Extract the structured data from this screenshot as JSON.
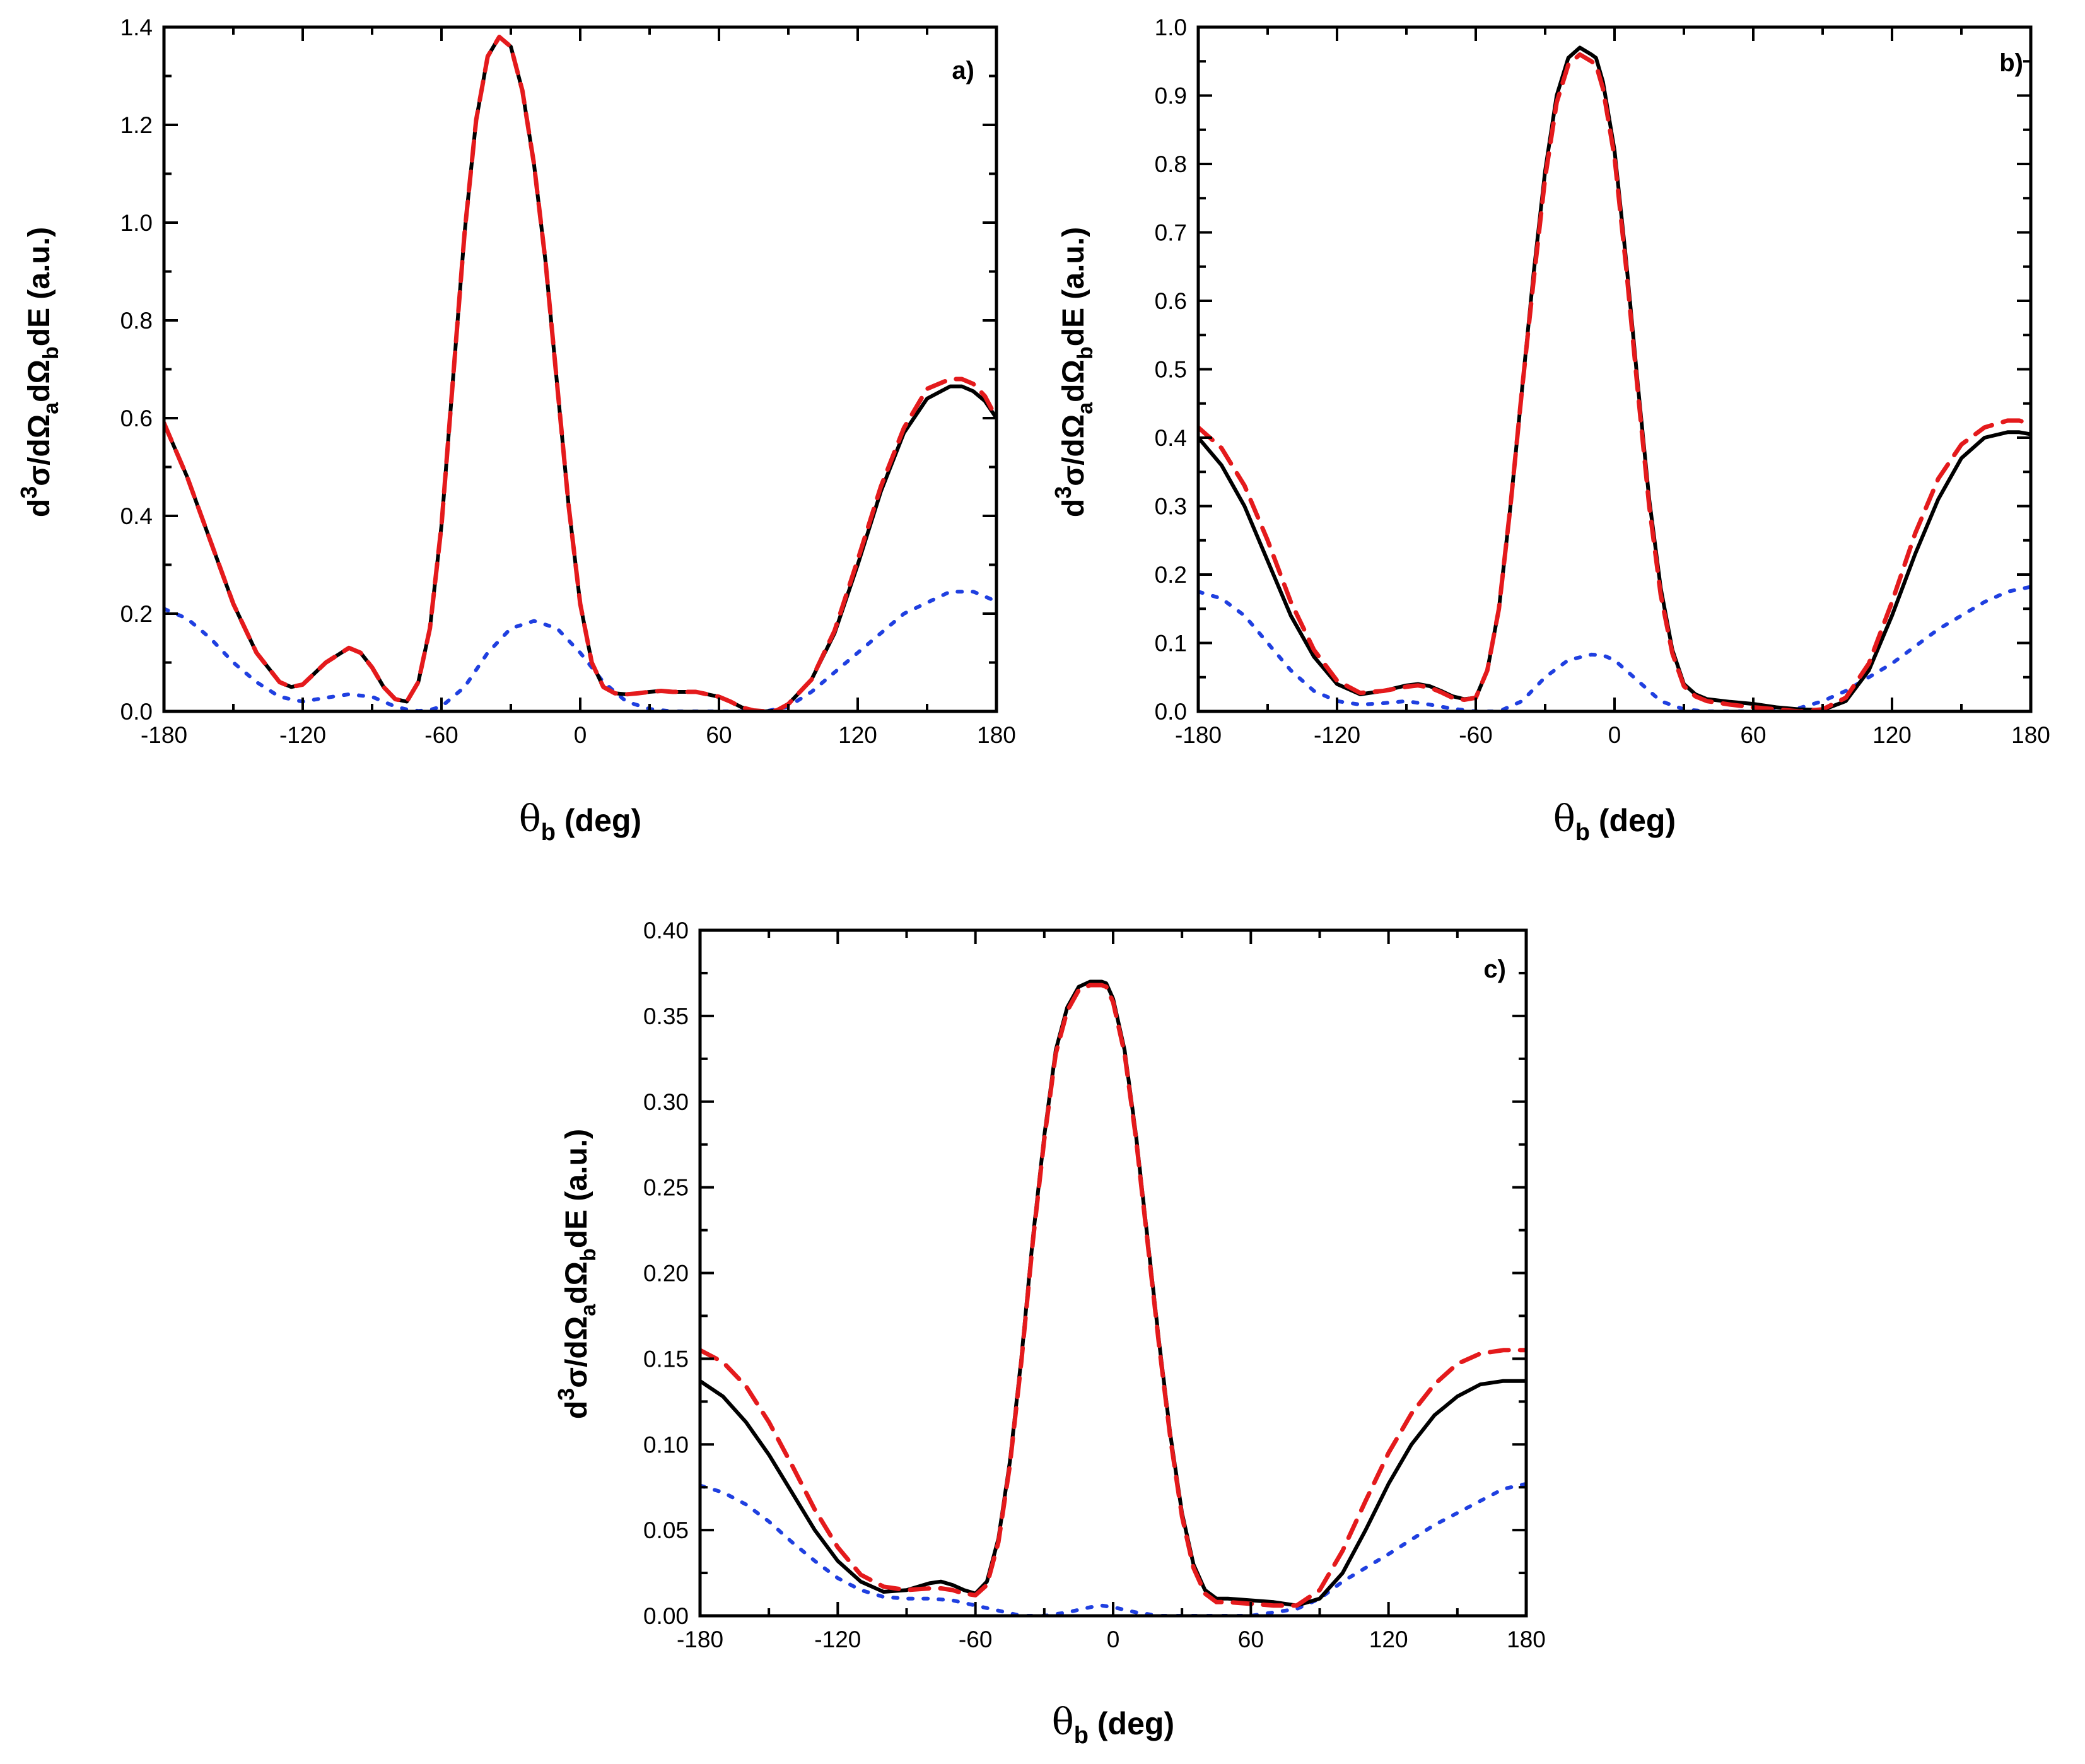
{
  "colors": {
    "full": "#000000",
    "approx": "#e41a1c",
    "component": "#1f3fe0"
  },
  "chart_data": [
    {
      "type": "line",
      "panel_label": "a)",
      "xlabel": {
        "symbol": "θ",
        "sub": "b",
        "rest": " (deg)"
      },
      "ylabel": {
        "d": "d",
        "exp": "3",
        "sig": "σ/dΩ",
        "suba": "a",
        "mid": "dΩ",
        "subb": "b",
        "rest": "dE (a.u.)"
      },
      "xlim": [
        -180,
        180
      ],
      "ylim": [
        0,
        1.4
      ],
      "xticks": [
        -180,
        -120,
        -60,
        0,
        60,
        120,
        180
      ],
      "xtick_labels": [
        "-180",
        "-120",
        "-60",
        "0",
        "60",
        "120",
        "180"
      ],
      "yticks": [
        0,
        0.2,
        0.4,
        0.6,
        0.8,
        1.0,
        1.2,
        1.4
      ],
      "ytick_labels": [
        "0.0",
        "0.2",
        "0.4",
        "0.6",
        "0.8",
        "1.0",
        "1.2",
        "1.4"
      ],
      "series": [
        {
          "name": "solid",
          "style": "solid",
          "color": "#000000",
          "x": [
            -180,
            -170,
            -160,
            -150,
            -140,
            -130,
            -125,
            -120,
            -110,
            -100,
            -95,
            -90,
            -85,
            -80,
            -75,
            -70,
            -65,
            -60,
            -55,
            -50,
            -45,
            -40,
            -35,
            -30,
            -25,
            -22,
            -20,
            -15,
            -10,
            -5,
            0,
            5,
            10,
            15,
            20,
            25,
            30,
            35,
            40,
            50,
            60,
            65,
            70,
            75,
            80,
            85,
            90,
            100,
            110,
            120,
            130,
            140,
            150,
            160,
            165,
            170,
            175,
            180
          ],
          "y": [
            0.59,
            0.48,
            0.35,
            0.22,
            0.12,
            0.06,
            0.05,
            0.055,
            0.1,
            0.13,
            0.12,
            0.09,
            0.05,
            0.025,
            0.02,
            0.06,
            0.17,
            0.38,
            0.68,
            0.98,
            1.21,
            1.34,
            1.38,
            1.36,
            1.27,
            1.18,
            1.12,
            0.92,
            0.67,
            0.42,
            0.22,
            0.1,
            0.05,
            0.037,
            0.035,
            0.037,
            0.04,
            0.042,
            0.04,
            0.04,
            0.03,
            0.02,
            0.008,
            0.002,
            0.0,
            0.002,
            0.015,
            0.065,
            0.16,
            0.3,
            0.45,
            0.57,
            0.64,
            0.665,
            0.665,
            0.655,
            0.635,
            0.6
          ]
        },
        {
          "name": "dashed",
          "style": "dashed",
          "color": "#e41a1c",
          "x": [
            -180,
            -170,
            -160,
            -150,
            -140,
            -130,
            -125,
            -120,
            -110,
            -100,
            -95,
            -90,
            -85,
            -80,
            -75,
            -70,
            -65,
            -60,
            -55,
            -50,
            -45,
            -40,
            -35,
            -30,
            -25,
            -22,
            -20,
            -15,
            -10,
            -5,
            0,
            5,
            10,
            15,
            20,
            25,
            30,
            35,
            40,
            50,
            60,
            65,
            70,
            75,
            80,
            85,
            90,
            100,
            110,
            120,
            130,
            140,
            150,
            160,
            165,
            170,
            175,
            180
          ],
          "y": [
            0.59,
            0.48,
            0.35,
            0.22,
            0.12,
            0.06,
            0.05,
            0.055,
            0.1,
            0.13,
            0.12,
            0.09,
            0.05,
            0.025,
            0.02,
            0.06,
            0.17,
            0.38,
            0.68,
            0.98,
            1.21,
            1.34,
            1.38,
            1.36,
            1.27,
            1.18,
            1.12,
            0.92,
            0.67,
            0.42,
            0.22,
            0.1,
            0.05,
            0.037,
            0.035,
            0.037,
            0.04,
            0.042,
            0.04,
            0.04,
            0.03,
            0.02,
            0.008,
            0.002,
            0.0,
            0.002,
            0.015,
            0.065,
            0.165,
            0.31,
            0.46,
            0.58,
            0.66,
            0.68,
            0.68,
            0.67,
            0.645,
            0.6
          ]
        },
        {
          "name": "dotted",
          "style": "dotted",
          "color": "#1f3fe0",
          "x": [
            -180,
            -170,
            -160,
            -150,
            -140,
            -130,
            -120,
            -110,
            -100,
            -90,
            -80,
            -75,
            -70,
            -65,
            -60,
            -50,
            -40,
            -30,
            -20,
            -10,
            0,
            10,
            20,
            30,
            40,
            60,
            80,
            90,
            100,
            120,
            140,
            160,
            170,
            180
          ],
          "y": [
            0.21,
            0.19,
            0.15,
            0.1,
            0.06,
            0.03,
            0.02,
            0.028,
            0.035,
            0.03,
            0.01,
            0.004,
            0.001,
            0.003,
            0.01,
            0.05,
            0.12,
            0.17,
            0.185,
            0.17,
            0.12,
            0.06,
            0.02,
            0.005,
            0.0,
            0.0,
            0.0,
            0.01,
            0.04,
            0.12,
            0.2,
            0.245,
            0.245,
            0.225
          ]
        }
      ]
    },
    {
      "type": "line",
      "panel_label": "b)",
      "xlabel": {
        "symbol": "θ",
        "sub": "b",
        "rest": " (deg)"
      },
      "ylabel": {
        "d": "d",
        "exp": "3",
        "sig": "σ/dΩ",
        "suba": "a",
        "mid": "dΩ",
        "subb": "b",
        "rest": "dE (a.u.)"
      },
      "xlim": [
        -180,
        180
      ],
      "ylim": [
        0,
        1.0
      ],
      "xticks": [
        -180,
        -120,
        -60,
        0,
        60,
        120,
        180
      ],
      "xtick_labels": [
        "-180",
        "-120",
        "-60",
        "0",
        "60",
        "120",
        "180"
      ],
      "yticks": [
        0,
        0.1,
        0.2,
        0.3,
        0.4,
        0.5,
        0.6,
        0.7,
        0.8,
        0.9,
        1.0
      ],
      "ytick_labels": [
        "0.0",
        "0.1",
        "0.2",
        "0.3",
        "0.4",
        "0.5",
        "0.6",
        "0.7",
        "0.8",
        "0.9",
        "1.0"
      ],
      "series": [
        {
          "name": "solid",
          "style": "solid",
          "color": "#000000",
          "x": [
            -180,
            -170,
            -160,
            -150,
            -140,
            -130,
            -120,
            -110,
            -100,
            -90,
            -85,
            -80,
            -75,
            -70,
            -65,
            -60,
            -55,
            -50,
            -45,
            -40,
            -35,
            -30,
            -25,
            -20,
            -15,
            -10,
            -8,
            -5,
            0,
            5,
            10,
            15,
            20,
            25,
            30,
            35,
            40,
            50,
            60,
            70,
            80,
            90,
            100,
            110,
            120,
            130,
            140,
            150,
            160,
            170,
            175,
            180
          ],
          "y": [
            0.4,
            0.36,
            0.3,
            0.22,
            0.14,
            0.08,
            0.04,
            0.025,
            0.03,
            0.038,
            0.04,
            0.037,
            0.03,
            0.022,
            0.018,
            0.02,
            0.06,
            0.15,
            0.3,
            0.47,
            0.64,
            0.79,
            0.9,
            0.955,
            0.97,
            0.96,
            0.955,
            0.92,
            0.82,
            0.66,
            0.48,
            0.31,
            0.18,
            0.09,
            0.04,
            0.025,
            0.018,
            0.014,
            0.011,
            0.006,
            0.003,
            0.002,
            0.015,
            0.06,
            0.14,
            0.23,
            0.31,
            0.37,
            0.4,
            0.408,
            0.408,
            0.405
          ]
        },
        {
          "name": "dashed",
          "style": "dashed",
          "color": "#e41a1c",
          "x": [
            -180,
            -170,
            -160,
            -150,
            -140,
            -130,
            -120,
            -110,
            -100,
            -90,
            -85,
            -80,
            -75,
            -70,
            -65,
            -60,
            -55,
            -50,
            -45,
            -40,
            -35,
            -30,
            -25,
            -20,
            -15,
            -10,
            -8,
            -5,
            0,
            5,
            10,
            15,
            20,
            25,
            30,
            35,
            40,
            50,
            60,
            70,
            80,
            90,
            100,
            110,
            120,
            130,
            140,
            150,
            160,
            170,
            175,
            180
          ],
          "y": [
            0.415,
            0.385,
            0.33,
            0.25,
            0.16,
            0.09,
            0.045,
            0.027,
            0.03,
            0.036,
            0.038,
            0.035,
            0.028,
            0.02,
            0.017,
            0.02,
            0.06,
            0.15,
            0.3,
            0.47,
            0.63,
            0.78,
            0.89,
            0.945,
            0.96,
            0.95,
            0.945,
            0.91,
            0.81,
            0.65,
            0.47,
            0.3,
            0.17,
            0.085,
            0.037,
            0.022,
            0.015,
            0.01,
            0.006,
            0.003,
            0.0,
            0.003,
            0.02,
            0.07,
            0.16,
            0.26,
            0.34,
            0.39,
            0.415,
            0.425,
            0.425,
            0.42
          ]
        },
        {
          "name": "dotted",
          "style": "dotted",
          "color": "#1f3fe0",
          "x": [
            -180,
            -170,
            -160,
            -150,
            -140,
            -130,
            -120,
            -110,
            -100,
            -90,
            -80,
            -70,
            -60,
            -50,
            -40,
            -30,
            -20,
            -10,
            -5,
            0,
            10,
            20,
            30,
            40,
            60,
            80,
            90,
            100,
            120,
            140,
            160,
            170,
            180
          ],
          "y": [
            0.175,
            0.165,
            0.14,
            0.1,
            0.06,
            0.03,
            0.015,
            0.01,
            0.012,
            0.015,
            0.01,
            0.004,
            0.0,
            0.0,
            0.015,
            0.05,
            0.075,
            0.083,
            0.082,
            0.075,
            0.045,
            0.015,
            0.003,
            0.0,
            0.0,
            0.005,
            0.015,
            0.03,
            0.07,
            0.12,
            0.16,
            0.175,
            0.182
          ]
        }
      ]
    },
    {
      "type": "line",
      "panel_label": "c)",
      "xlabel": {
        "symbol": "θ",
        "sub": "b",
        "rest": " (deg)"
      },
      "ylabel": {
        "d": "d",
        "exp": "3",
        "sig": "σ/dΩ",
        "suba": "a",
        "mid": "dΩ",
        "subb": "b",
        "rest": "dE (a.u.)"
      },
      "xlim": [
        -180,
        180
      ],
      "ylim": [
        0,
        0.4
      ],
      "xticks": [
        -180,
        -120,
        -60,
        0,
        60,
        120,
        180
      ],
      "xtick_labels": [
        "-180",
        "-120",
        "-60",
        "0",
        "60",
        "120",
        "180"
      ],
      "yticks": [
        0,
        0.05,
        0.1,
        0.15,
        0.2,
        0.25,
        0.3,
        0.35,
        0.4
      ],
      "ytick_labels": [
        "0.00",
        "0.05",
        "0.10",
        "0.15",
        "0.20",
        "0.25",
        "0.30",
        "0.35",
        "0.40"
      ],
      "series": [
        {
          "name": "solid",
          "style": "solid",
          "color": "#000000",
          "x": [
            -180,
            -170,
            -160,
            -150,
            -140,
            -130,
            -120,
            -110,
            -100,
            -90,
            -80,
            -75,
            -70,
            -65,
            -60,
            -55,
            -50,
            -45,
            -40,
            -35,
            -30,
            -25,
            -20,
            -15,
            -10,
            -5,
            -3,
            0,
            5,
            10,
            15,
            20,
            25,
            30,
            35,
            40,
            45,
            50,
            60,
            70,
            80,
            90,
            100,
            110,
            120,
            130,
            140,
            150,
            160,
            170,
            180
          ],
          "y": [
            0.137,
            0.128,
            0.113,
            0.094,
            0.072,
            0.05,
            0.032,
            0.02,
            0.014,
            0.015,
            0.019,
            0.02,
            0.018,
            0.015,
            0.013,
            0.02,
            0.045,
            0.09,
            0.15,
            0.22,
            0.28,
            0.33,
            0.355,
            0.367,
            0.37,
            0.37,
            0.369,
            0.36,
            0.33,
            0.28,
            0.22,
            0.16,
            0.105,
            0.06,
            0.03,
            0.015,
            0.01,
            0.01,
            0.009,
            0.008,
            0.006,
            0.01,
            0.025,
            0.05,
            0.077,
            0.1,
            0.117,
            0.128,
            0.135,
            0.137,
            0.137
          ]
        },
        {
          "name": "dashed",
          "style": "dashed",
          "color": "#e41a1c",
          "x": [
            -180,
            -170,
            -160,
            -150,
            -140,
            -130,
            -120,
            -110,
            -100,
            -90,
            -80,
            -75,
            -70,
            -65,
            -60,
            -55,
            -50,
            -45,
            -40,
            -35,
            -30,
            -25,
            -20,
            -15,
            -10,
            -5,
            -3,
            0,
            5,
            10,
            15,
            20,
            25,
            30,
            35,
            40,
            45,
            50,
            60,
            70,
            80,
            90,
            100,
            110,
            120,
            130,
            140,
            150,
            160,
            170,
            180
          ],
          "y": [
            0.155,
            0.148,
            0.134,
            0.113,
            0.088,
            0.062,
            0.04,
            0.024,
            0.017,
            0.015,
            0.016,
            0.016,
            0.015,
            0.013,
            0.012,
            0.018,
            0.043,
            0.088,
            0.148,
            0.218,
            0.278,
            0.328,
            0.353,
            0.365,
            0.368,
            0.368,
            0.367,
            0.358,
            0.328,
            0.278,
            0.218,
            0.158,
            0.103,
            0.058,
            0.028,
            0.013,
            0.008,
            0.008,
            0.007,
            0.006,
            0.006,
            0.015,
            0.038,
            0.067,
            0.095,
            0.118,
            0.135,
            0.147,
            0.153,
            0.155,
            0.155
          ]
        },
        {
          "name": "dotted",
          "style": "dotted",
          "color": "#1f3fe0",
          "x": [
            -180,
            -170,
            -160,
            -150,
            -140,
            -130,
            -120,
            -110,
            -100,
            -90,
            -80,
            -70,
            -60,
            -50,
            -40,
            -30,
            -20,
            -10,
            -5,
            0,
            10,
            20,
            30,
            40,
            60,
            80,
            90,
            100,
            120,
            140,
            160,
            170,
            180
          ],
          "y": [
            0.076,
            0.072,
            0.065,
            0.055,
            0.043,
            0.032,
            0.022,
            0.015,
            0.011,
            0.01,
            0.01,
            0.009,
            0.006,
            0.003,
            0.0,
            0.0,
            0.002,
            0.005,
            0.006,
            0.005,
            0.002,
            0.0,
            0.0,
            0.0,
            0.0,
            0.004,
            0.01,
            0.02,
            0.036,
            0.053,
            0.067,
            0.074,
            0.077
          ]
        }
      ]
    }
  ]
}
